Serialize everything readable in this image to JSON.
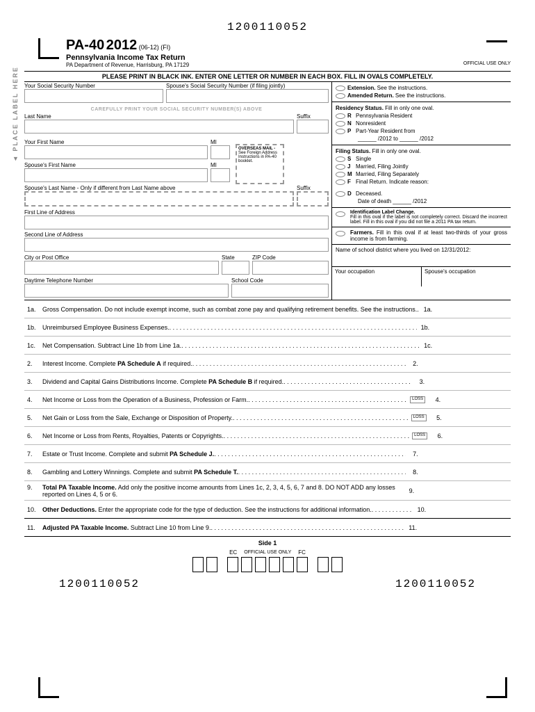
{
  "ocr_code": "1200110052",
  "form_id": "PA-40",
  "year": "2012",
  "revision": "(06-12) (FI)",
  "subtitle": "Pennsylvania Income Tax Return",
  "dept": "PA Department of Revenue, Harrisburg, PA 17129",
  "official_use": "OFFICIAL USE ONLY",
  "instruction_bar": "PLEASE PRINT IN BLACK INK. ENTER ONE LETTER OR NUMBER IN EACH BOX. FILL IN OVALS COMPLETELY.",
  "labels": {
    "ssn": "Your Social Security Number",
    "spouse_ssn": "Spouse's Social Security Number (if filing jointly)",
    "careful": "CAREFULLY PRINT YOUR SOCIAL SECURITY NUMBER(S) ABOVE",
    "last_name": "Last Name",
    "suffix": "Suffix",
    "first_name": "Your First Name",
    "mi": "MI",
    "spouse_first": "Spouse's First Name",
    "spouse_last": "Spouse's Last Name - Only if different from Last Name above",
    "addr1": "First Line of Address",
    "addr2": "Second Line of Address",
    "city": "City or Post Office",
    "state": "State",
    "zip": "ZIP Code",
    "phone": "Daytime Telephone Number",
    "school_code": "School Code",
    "place_label": "◄ PLACE  LABEL  HERE",
    "overseas_title": "OVERSEAS MAIL -",
    "overseas_text": "See Foreign Address Instructions in PA-40 booklet."
  },
  "right": {
    "extension": "Extension.",
    "extension_text": " See the instructions.",
    "amended": "Amended Return.",
    "amended_text": " See the instructions.",
    "residency_hdr": "Residency Status.",
    "residency_sub": " Fill in only one oval.",
    "r": "Pennsylvania Resident",
    "n": "Nonresident",
    "p": "Part-Year Resident from",
    "p_dates": "______ /2012 to ______ /2012",
    "filing_hdr": "Filing Status.",
    "filing_sub": " Fill in only one oval.",
    "s": "Single",
    "j": "Married, Filing Jointly",
    "m": "Married, Filing Separately",
    "f": "Final Return. Indicate reason:",
    "d": "Deceased.",
    "d_date": "Date of death ______ /2012",
    "id_label_hdr": "Identification Label Change.",
    "id_label_text": "Fill in this oval if the label is not completely correct. Discard the incorrect label. Fill in this oval if you did not file a 2011 PA tax return.",
    "farmers_hdr": "Farmers.",
    "farmers_text": " Fill in this oval if at least two-thirds of your gross income is from farming.",
    "school_district": "Name of school district where you lived on 12/31/2012:",
    "your_occ": "Your occupation",
    "spouse_occ": "Spouse's occupation"
  },
  "lines": [
    {
      "num": "1a.",
      "text": "Gross Compensation. Do not include exempt income, such as combat zone pay and qualifying retirement benefits. See the instructions.",
      "end": "1a."
    },
    {
      "num": "1b.",
      "text": "Unreimbursed Employee Business Expenses.",
      "end": "1b."
    },
    {
      "num": "1c.",
      "text": "Net Compensation. Subtract Line 1b from Line 1a.",
      "end": "1c."
    },
    {
      "num": "2.",
      "text": "Interest Income. Complete PA Schedule A if required.",
      "end": "2.",
      "bold_part": "PA Schedule A"
    },
    {
      "num": "3.",
      "text": "Dividend and Capital Gains Distributions Income. Complete PA Schedule B if required.",
      "end": "3.",
      "bold_part": "PA Schedule B"
    },
    {
      "num": "4.",
      "text": "Net Income or Loss from the Operation of a Business, Profession or Farm.",
      "end": "4.",
      "loss": true
    },
    {
      "num": "5.",
      "text": "Net Gain or Loss from the Sale, Exchange or Disposition of Property.",
      "end": "5.",
      "loss": true
    },
    {
      "num": "6.",
      "text": "Net Income or Loss from Rents, Royalties, Patents or Copyrights.",
      "end": "6.",
      "loss": true
    },
    {
      "num": "7.",
      "text": "Estate or Trust Income. Complete and submit PA Schedule J.",
      "end": "7.",
      "bold_part": "PA Schedule J."
    },
    {
      "num": "8.",
      "text": "Gambling and Lottery Winnings. Complete and submit PA Schedule T.",
      "end": "8.",
      "bold_part": "PA Schedule T."
    },
    {
      "num": "9.",
      "text_pre": "Total PA Taxable Income.",
      "text": " Add only the positive income amounts from Lines 1c, 2, 3, 4, 5, 6, 7 and 8. DO NOT ADD any losses reported on Lines 4, 5 or 6.",
      "end": "9.",
      "bold_start": true
    },
    {
      "num": "10.",
      "text_pre": "Other Deductions.",
      "text": " Enter the appropriate code for the type of deduction. See the instructions for additional information.",
      "end": "10.",
      "bold_start": true,
      "thick": true
    },
    {
      "num": "11.",
      "text_pre": "Adjusted PA Taxable Income.",
      "text": " Subtract Line 10 from Line 9.",
      "end": "11.",
      "bold_start": true,
      "thick": true
    }
  ],
  "footer_side": "Side 1",
  "ec": "EC",
  "fc": "FC"
}
